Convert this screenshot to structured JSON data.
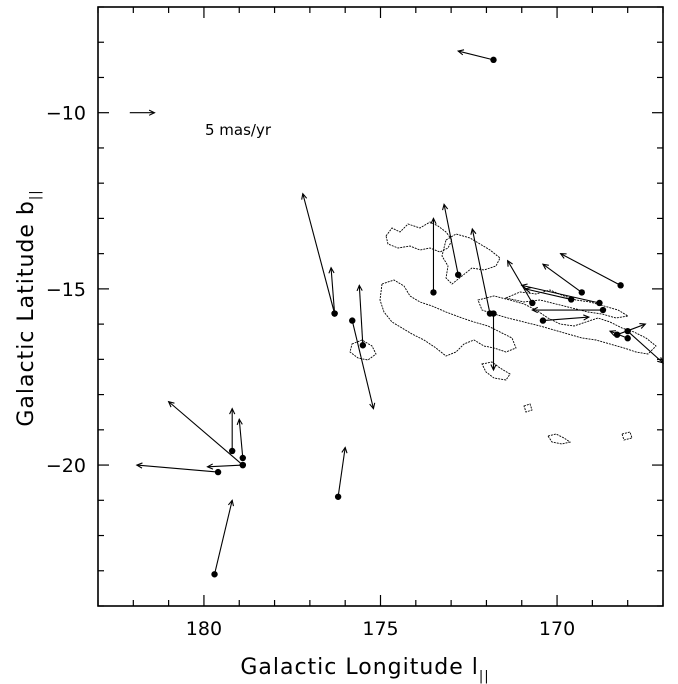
{
  "chart_data": {
    "type": "scatter",
    "xlabel": "Galactic Longitude l",
    "xlabel_subscript": "||",
    "ylabel": "Galactic Latitude b",
    "ylabel_subscript": "||",
    "xlim": [
      183,
      167
    ],
    "ylim": [
      -24,
      -7
    ],
    "x_ticks": [
      180,
      175,
      170
    ],
    "y_ticks": [
      -10,
      -15,
      -20
    ],
    "x_tick_labels": [
      "180",
      "175",
      "170"
    ],
    "y_tick_labels": [
      "−10",
      "−15",
      "−20"
    ],
    "grid": false,
    "scale_bar": {
      "label": "5 mas/yr",
      "l": 182.1,
      "b": -10.0,
      "dl": -0.7,
      "db": 0
    },
    "stars": [
      {
        "l": 171.8,
        "b": -8.5,
        "dl": 1.0,
        "db": 0.25
      },
      {
        "l": 176.3,
        "b": -15.7,
        "dl": 0.9,
        "db": 3.4
      },
      {
        "l": 172.8,
        "b": -14.6,
        "dl": 0.4,
        "db": 2.0
      },
      {
        "l": 173.5,
        "b": -15.1,
        "dl": 0.0,
        "db": 2.1
      },
      {
        "l": 171.9,
        "b": -15.7,
        "dl": 0.5,
        "db": 2.4
      },
      {
        "l": 171.8,
        "b": -15.7,
        "dl": 0.0,
        "db": -1.6
      },
      {
        "l": 175.5,
        "b": -16.6,
        "dl": 0.1,
        "db": 1.7
      },
      {
        "l": 176.3,
        "b": -15.7,
        "dl": 0.1,
        "db": 1.3
      },
      {
        "l": 175.8,
        "b": -15.9,
        "dl": -0.6,
        "db": -2.5
      },
      {
        "l": 169.3,
        "b": -15.1,
        "dl": 1.1,
        "db": 0.8
      },
      {
        "l": 168.2,
        "b": -14.9,
        "dl": 1.7,
        "db": 0.9
      },
      {
        "l": 169.6,
        "b": -15.3,
        "dl": 1.3,
        "db": 0.3
      },
      {
        "l": 170.7,
        "b": -15.4,
        "dl": 0.7,
        "db": 1.2
      },
      {
        "l": 168.8,
        "b": -15.4,
        "dl": 2.2,
        "db": 0.5
      },
      {
        "l": 168.7,
        "b": -15.6,
        "dl": 2.0,
        "db": 0.0
      },
      {
        "l": 170.4,
        "b": -15.9,
        "dl": -1.3,
        "db": 0.1
      },
      {
        "l": 168.3,
        "b": -16.3,
        "dl": -0.8,
        "db": 0.3
      },
      {
        "l": 168.0,
        "b": -16.2,
        "dl": -1.0,
        "db": -0.9
      },
      {
        "l": 168.0,
        "b": -16.4,
        "dl": 0.5,
        "db": 0.2
      },
      {
        "l": 179.2,
        "b": -19.6,
        "dl": 0.0,
        "db": 1.2
      },
      {
        "l": 178.9,
        "b": -19.8,
        "dl": 0.1,
        "db": 1.1
      },
      {
        "l": 178.9,
        "b": -20.0,
        "dl": 2.1,
        "db": 1.8
      },
      {
        "l": 179.6,
        "b": -20.2,
        "dl": 2.3,
        "db": 0.2
      },
      {
        "l": 178.9,
        "b": -20.0,
        "dl": 1.0,
        "db": -0.05
      },
      {
        "l": 176.2,
        "b": -20.9,
        "dl": -0.2,
        "db": 1.4
      },
      {
        "l": 179.7,
        "b": -23.1,
        "dl": -0.5,
        "db": 2.1
      }
    ]
  }
}
